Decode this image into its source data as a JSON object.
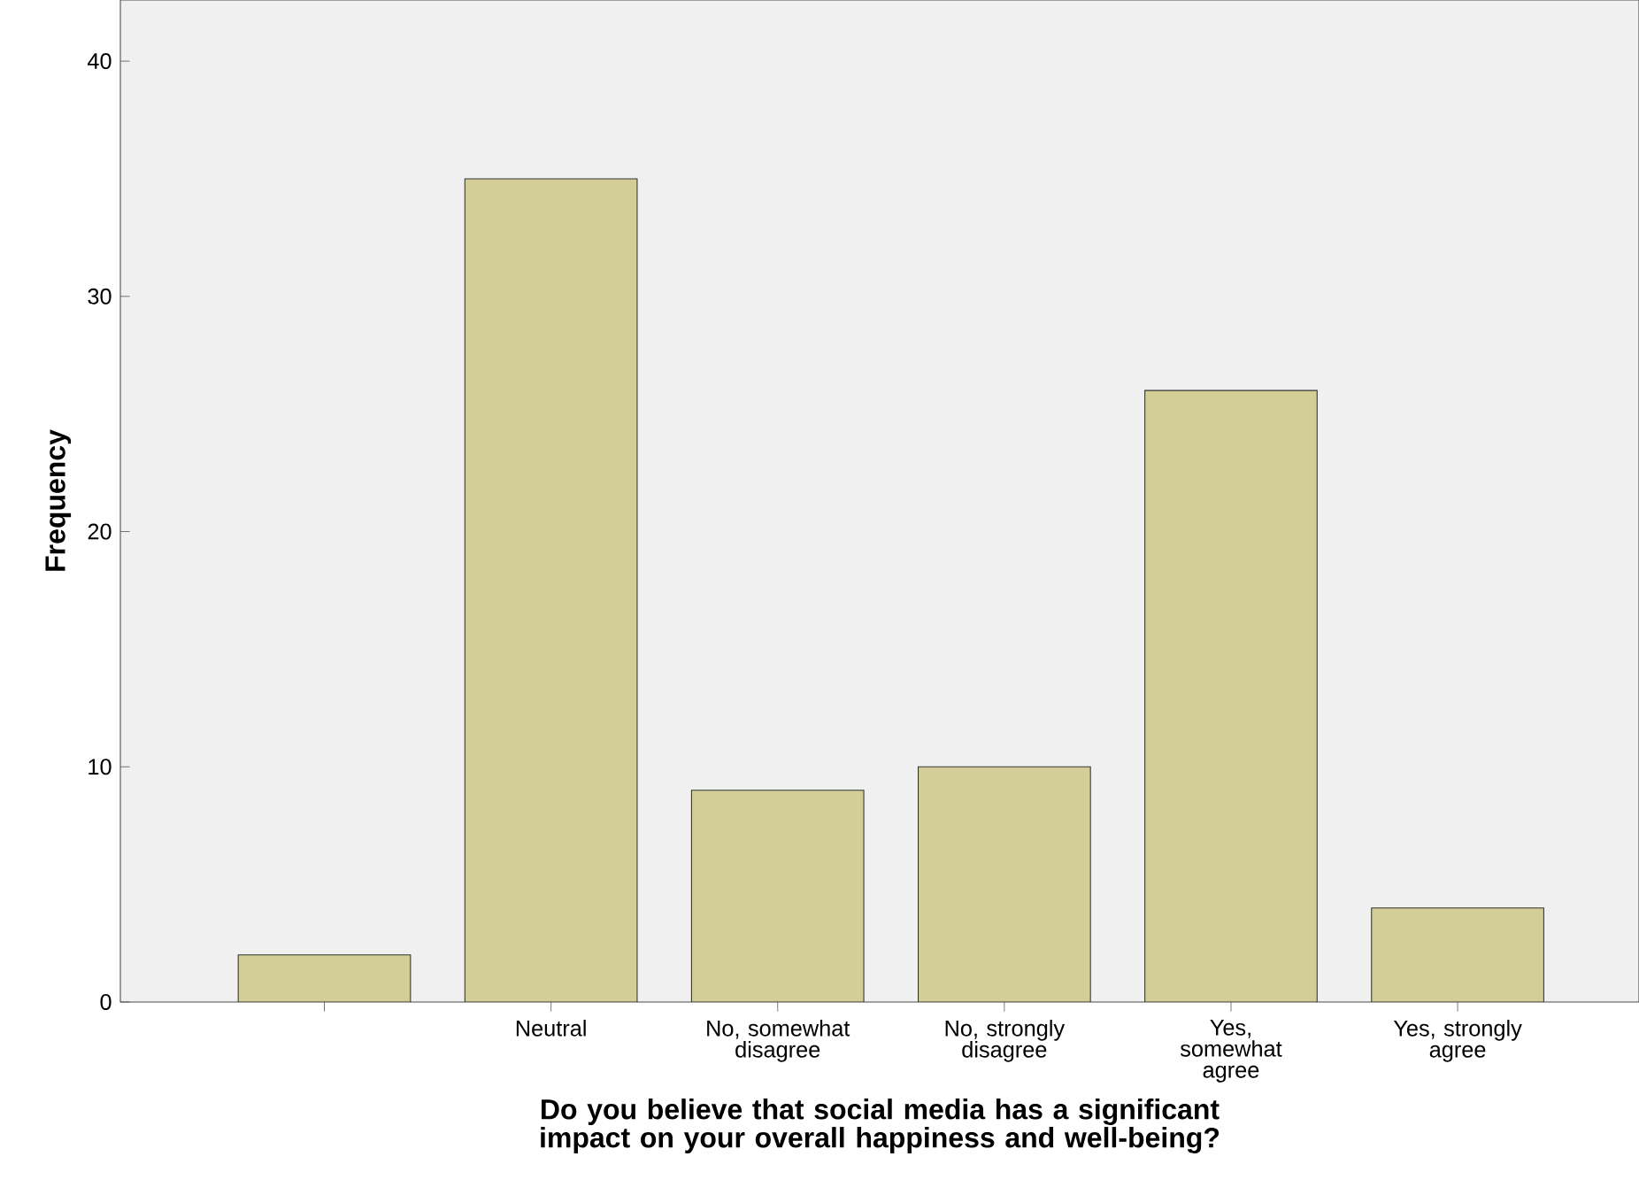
{
  "chart_data": {
    "type": "bar",
    "xlabel": "Do you believe that social media has a significant impact on your overall happiness and well-being?",
    "ylabel": "Frequency",
    "categories": [
      null,
      "Neutral",
      "No, somewhat disagree",
      "No, strongly disagree",
      "Yes, somewhat agree",
      "Yes, strongly agree"
    ],
    "values": [
      2,
      35,
      9,
      10,
      26,
      4
    ],
    "color": "#d3ce97",
    "ylim": [
      0,
      42.6
    ],
    "yticks": [
      0,
      10,
      20,
      30,
      40
    ],
    "grid": false
  }
}
